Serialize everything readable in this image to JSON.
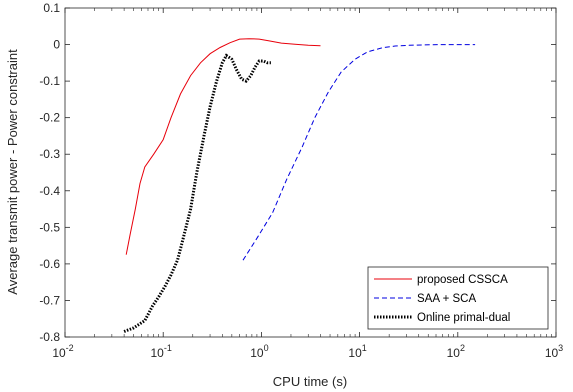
{
  "chart_data": {
    "type": "line",
    "xlabel": "CPU time (s)",
    "ylabel": "Average transmit power - Power constraint",
    "xscale": "log",
    "xlim": [
      0.01,
      1000
    ],
    "ylim": [
      -0.8,
      0.1
    ],
    "grid": false,
    "legend_position": "bottom-right",
    "x_ticks": [
      {
        "value": 0.01,
        "base": "10",
        "exp": "-2"
      },
      {
        "value": 0.1,
        "base": "10",
        "exp": "-1"
      },
      {
        "value": 1,
        "base": "10",
        "exp": "0"
      },
      {
        "value": 10,
        "base": "10",
        "exp": "1"
      },
      {
        "value": 100,
        "base": "10",
        "exp": "2"
      },
      {
        "value": 1000,
        "base": "10",
        "exp": "3"
      }
    ],
    "y_ticks": [
      {
        "value": 0.1,
        "label": "0.1"
      },
      {
        "value": 0,
        "label": "0"
      },
      {
        "value": -0.1,
        "label": "-0.1"
      },
      {
        "value": -0.2,
        "label": "-0.2"
      },
      {
        "value": -0.3,
        "label": "-0.3"
      },
      {
        "value": -0.4,
        "label": "-0.4"
      },
      {
        "value": -0.5,
        "label": "-0.5"
      },
      {
        "value": -0.6,
        "label": "-0.6"
      },
      {
        "value": -0.7,
        "label": "-0.7"
      },
      {
        "value": -0.8,
        "label": "-0.8"
      }
    ],
    "series": [
      {
        "name": "proposed CSSCA",
        "color": "#e8000b",
        "style": "solid",
        "x": [
          0.042,
          0.046,
          0.052,
          0.058,
          0.065,
          0.08,
          0.1,
          0.12,
          0.15,
          0.19,
          0.24,
          0.3,
          0.38,
          0.48,
          0.6,
          0.75,
          0.95,
          1.2,
          1.6,
          2.2,
          3.0,
          4.0
        ],
        "y": [
          -0.575,
          -0.52,
          -0.45,
          -0.38,
          -0.335,
          -0.3,
          -0.26,
          -0.2,
          -0.135,
          -0.085,
          -0.05,
          -0.025,
          -0.008,
          0.005,
          0.015,
          0.016,
          0.015,
          0.01,
          0.004,
          0.001,
          -0.002,
          -0.003
        ]
      },
      {
        "name": "SAA + SCA",
        "color": "#0000e0",
        "style": "dashed",
        "x": [
          0.65,
          0.9,
          1.3,
          1.8,
          2.6,
          3.5,
          4.8,
          6.5,
          9,
          12,
          17,
          23,
          32,
          45,
          65,
          90,
          150
        ],
        "y": [
          -0.59,
          -0.53,
          -0.46,
          -0.37,
          -0.28,
          -0.2,
          -0.13,
          -0.075,
          -0.04,
          -0.02,
          -0.009,
          -0.004,
          -0.002,
          -0.001,
          0,
          0,
          0
        ]
      },
      {
        "name": "Online primal-dual",
        "color": "#000000",
        "style": "dotted",
        "x": [
          0.04,
          0.05,
          0.065,
          0.078,
          0.09,
          0.105,
          0.12,
          0.14,
          0.16,
          0.19,
          0.22,
          0.26,
          0.3,
          0.35,
          0.4,
          0.44,
          0.5,
          0.56,
          0.63,
          0.7,
          0.78,
          0.86,
          0.95,
          1.05,
          1.15,
          1.25
        ],
        "y": [
          -0.785,
          -0.775,
          -0.755,
          -0.715,
          -0.69,
          -0.66,
          -0.63,
          -0.59,
          -0.53,
          -0.45,
          -0.35,
          -0.25,
          -0.17,
          -0.1,
          -0.05,
          -0.03,
          -0.04,
          -0.07,
          -0.095,
          -0.1,
          -0.085,
          -0.062,
          -0.045,
          -0.045,
          -0.05,
          -0.05
        ]
      }
    ]
  }
}
